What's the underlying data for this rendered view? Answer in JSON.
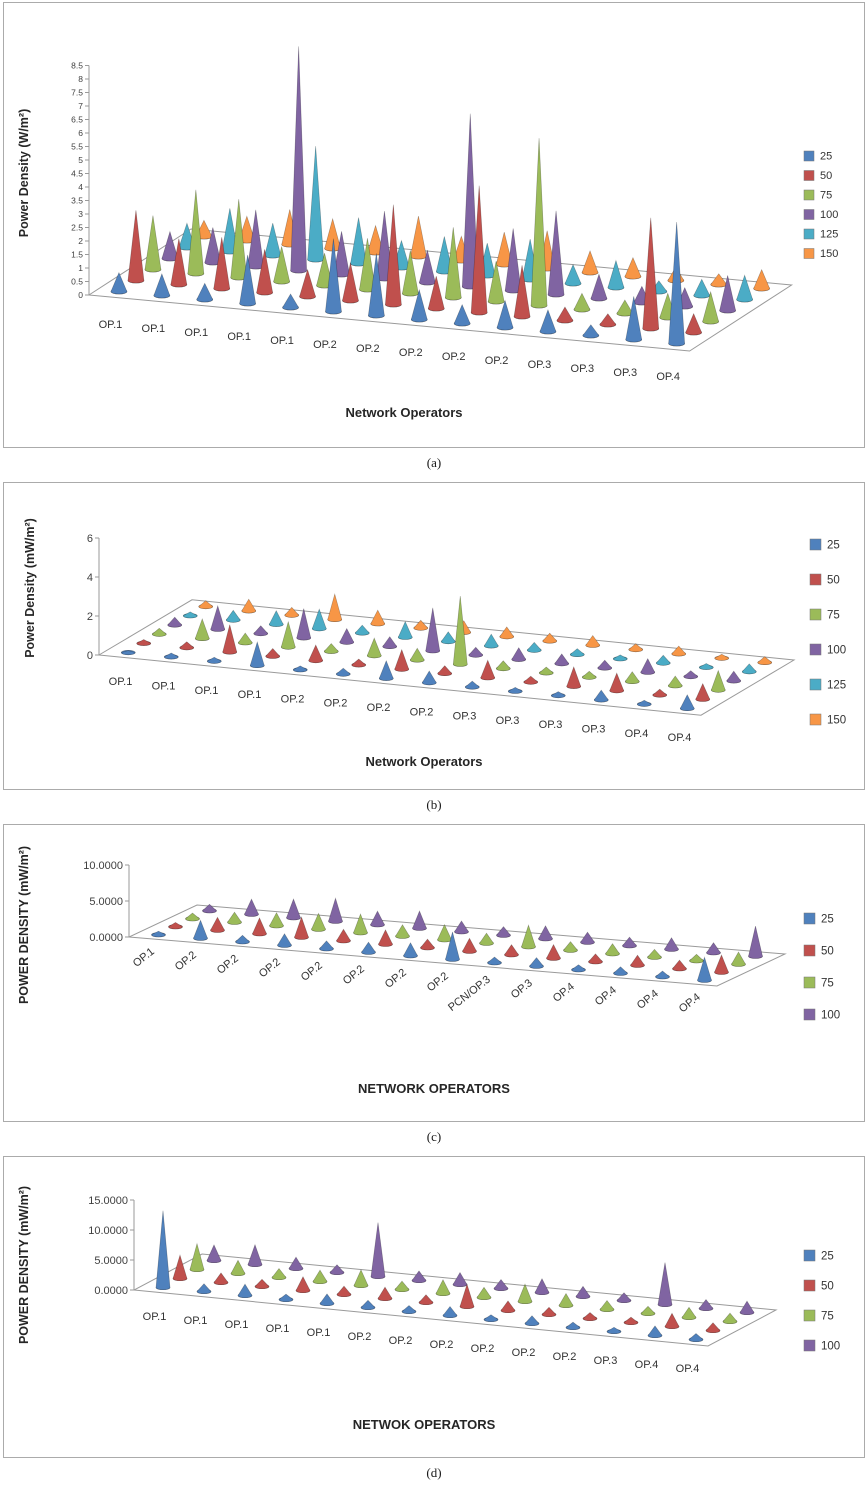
{
  "chart_data": [
    {
      "id": "a",
      "type": "bar",
      "subtype": "3d-cone-column",
      "caption": "(a)",
      "title": "",
      "xlabel": "Network Operators",
      "ylabel": "Power Density (W/m²)",
      "ylim": [
        0,
        8.5
      ],
      "grid": false,
      "legend_position": "right",
      "yticks": [
        {
          "value": 0,
          "label": "0"
        },
        {
          "value": 0.5,
          "label": "0.5"
        },
        {
          "value": 1,
          "label": "1"
        },
        {
          "value": 1.5,
          "label": "1.5"
        },
        {
          "value": 2,
          "label": "2"
        },
        {
          "value": 2.5,
          "label": "2.5"
        },
        {
          "value": 3,
          "label": "3"
        },
        {
          "value": 3.5,
          "label": "3.5"
        },
        {
          "value": 4,
          "label": "4"
        },
        {
          "value": 4.5,
          "label": "4.5"
        },
        {
          "value": 5,
          "label": "5"
        },
        {
          "value": 5.5,
          "label": "5.5"
        },
        {
          "value": 6,
          "label": "6"
        },
        {
          "value": 6.5,
          "label": "6.5"
        },
        {
          "value": 7,
          "label": "7"
        },
        {
          "value": 7.5,
          "label": "7.5"
        },
        {
          "value": 8,
          "label": "8"
        },
        {
          "value": 8.5,
          "label": "8.5"
        }
      ],
      "categories": [
        "OP.1",
        "OP.1",
        "OP.1",
        "OP.1",
        "OP.1",
        "OP.2",
        "OP.2",
        "OP.2",
        "OP.2",
        "OP.2",
        "OP.3",
        "OP.3",
        "OP.3",
        "OP.4"
      ],
      "series": [
        {
          "name": "25",
          "color": "#4F81BD",
          "values": [
            0.7,
            0.8,
            0.6,
            1.8,
            0.5,
            2.7,
            2.3,
            1.1,
            0.7,
            1.0,
            0.8,
            0.4,
            1.6,
            4.5
          ]
        },
        {
          "name": "50",
          "color": "#C0504D",
          "values": [
            2.6,
            1.7,
            1.9,
            1.6,
            1.0,
            1.4,
            3.7,
            1.2,
            4.7,
            1.9,
            0.5,
            0.4,
            4.1,
            0.7
          ]
        },
        {
          "name": "75",
          "color": "#9BBB59",
          "values": [
            2.0,
            3.1,
            2.9,
            1.3,
            1.2,
            1.9,
            1.6,
            2.6,
            1.5,
            6.2,
            0.6,
            0.5,
            0.9,
            1.1
          ]
        },
        {
          "name": "100",
          "color": "#8064A2",
          "values": [
            1.0,
            1.3,
            2.1,
            8.3,
            1.6,
            2.5,
            1.2,
            6.4,
            2.3,
            3.1,
            0.9,
            0.6,
            0.7,
            1.3
          ]
        },
        {
          "name": "125",
          "color": "#4BACC6",
          "values": [
            0.9,
            1.6,
            1.2,
            4.2,
            1.7,
            1.0,
            1.3,
            1.2,
            1.5,
            0.7,
            1.0,
            0.4,
            0.6,
            0.9
          ]
        },
        {
          "name": "150",
          "color": "#F79646",
          "values": [
            0.6,
            0.9,
            1.3,
            1.1,
            1.0,
            1.5,
            0.9,
            1.2,
            1.4,
            0.8,
            0.7,
            0.5,
            0.4,
            0.7
          ]
        }
      ]
    },
    {
      "id": "b",
      "type": "bar",
      "subtype": "3d-cone-column",
      "caption": "(b)",
      "title": "",
      "xlabel": "Network Operators",
      "ylabel": "Power Density (mW/m²)",
      "ylim": [
        0,
        6
      ],
      "grid": false,
      "legend_position": "right",
      "yticks": [
        {
          "value": 0,
          "label": "0"
        },
        {
          "value": 2,
          "label": "2"
        },
        {
          "value": 4,
          "label": "4"
        },
        {
          "value": 6,
          "label": "6"
        }
      ],
      "categories": [
        "OP.1",
        "OP.1",
        "OP.1",
        "OP.1",
        "OP.2",
        "OP.2",
        "OP.2",
        "OP.2",
        "OP.3",
        "OP.3",
        "OP.3",
        "OP.3",
        "OP.4",
        "OP.4"
      ],
      "series": [
        {
          "name": "25",
          "color": "#4F81BD",
          "values": [
            0.1,
            0.2,
            0.2,
            1.2,
            0.2,
            0.3,
            0.9,
            0.6,
            0.3,
            0.2,
            0.2,
            0.5,
            0.2,
            0.7
          ]
        },
        {
          "name": "50",
          "color": "#C0504D",
          "values": [
            0.2,
            0.3,
            1.4,
            0.4,
            0.8,
            0.3,
            1.0,
            0.4,
            0.9,
            0.3,
            1.0,
            0.9,
            0.3,
            0.8
          ]
        },
        {
          "name": "75",
          "color": "#9BBB59",
          "values": [
            0.3,
            1.0,
            0.5,
            1.3,
            0.4,
            0.9,
            0.6,
            3.5,
            0.4,
            0.3,
            0.3,
            0.5,
            0.5,
            1.0
          ]
        },
        {
          "name": "100",
          "color": "#8064A2",
          "values": [
            0.4,
            1.2,
            0.4,
            1.5,
            0.7,
            0.5,
            2.2,
            0.4,
            0.6,
            0.5,
            0.4,
            0.7,
            0.3,
            0.5
          ]
        },
        {
          "name": "125",
          "color": "#4BACC6",
          "values": [
            0.2,
            0.5,
            0.7,
            1.0,
            0.4,
            0.8,
            0.5,
            0.6,
            0.4,
            0.3,
            0.2,
            0.4,
            0.2,
            0.4
          ]
        },
        {
          "name": "150",
          "color": "#F79646",
          "values": [
            0.3,
            0.6,
            0.4,
            1.3,
            0.7,
            0.4,
            0.6,
            0.5,
            0.4,
            0.5,
            0.3,
            0.4,
            0.2,
            0.3
          ]
        }
      ]
    },
    {
      "id": "c",
      "type": "bar",
      "subtype": "3d-cone-column",
      "caption": "(c)",
      "title": "",
      "xlabel": "NETWORK OPERATORS",
      "ylabel": "POWER DENSITY  (mW/m²)",
      "ylim": [
        0,
        10
      ],
      "grid": false,
      "legend_position": "right",
      "yticks": [
        {
          "value": 0,
          "label": "0.0000"
        },
        {
          "value": 5,
          "label": "5.0000"
        },
        {
          "value": 10,
          "label": "10.0000"
        }
      ],
      "categories": [
        "OP.1",
        "OP.2",
        "OP.2",
        "OP.2",
        "OP.2",
        "OP.2",
        "OP.2",
        "OP.2",
        "PCN/OP.3",
        "OP.3",
        "OP.4",
        "OP.4",
        "OP.4",
        "OP.4"
      ],
      "series": [
        {
          "name": "25",
          "color": "#4F81BD",
          "values": [
            0.5,
            2.5,
            0.9,
            1.6,
            1.1,
            1.4,
            1.8,
            3.8,
            0.8,
            1.2,
            0.7,
            0.9,
            0.8,
            3.2
          ]
        },
        {
          "name": "50",
          "color": "#C0504D",
          "values": [
            0.6,
            1.8,
            2.2,
            2.8,
            1.6,
            2.0,
            1.2,
            1.8,
            1.4,
            1.9,
            1.1,
            1.4,
            1.2,
            2.4
          ]
        },
        {
          "name": "75",
          "color": "#9BBB59",
          "values": [
            0.8,
            1.4,
            1.8,
            2.2,
            2.6,
            1.6,
            2.1,
            1.4,
            3.0,
            1.2,
            1.4,
            1.1,
            0.9,
            1.7
          ]
        },
        {
          "name": "100",
          "color": "#8064A2",
          "values": [
            0.9,
            2.1,
            2.6,
            3.2,
            1.9,
            2.4,
            1.5,
            1.2,
            1.8,
            1.4,
            1.2,
            1.6,
            1.4,
            4.2
          ]
        }
      ]
    },
    {
      "id": "d",
      "type": "bar",
      "subtype": "3d-cone-column",
      "caption": "(d)",
      "title": "",
      "xlabel": "NETWOK OPERATORS",
      "ylabel": "POWER DENSITY  (mW/m²)",
      "ylim": [
        0,
        15
      ],
      "grid": false,
      "legend_position": "right",
      "yticks": [
        {
          "value": 0,
          "label": "0.0000"
        },
        {
          "value": 5,
          "label": "5.0000"
        },
        {
          "value": 10,
          "label": "10.0000"
        },
        {
          "value": 15,
          "label": "15.0000"
        }
      ],
      "categories": [
        "OP.1",
        "OP.1",
        "OP.1",
        "OP.1",
        "OP.1",
        "OP.2",
        "OP.2",
        "OP.2",
        "OP.2",
        "OP.2",
        "OP.2",
        "OP.3",
        "OP.4",
        "OP.4"
      ],
      "series": [
        {
          "name": "25",
          "color": "#4F81BD",
          "values": [
            12.8,
            1.3,
            1.9,
            0.9,
            1.6,
            1.2,
            1.0,
            1.5,
            0.8,
            1.3,
            0.9,
            0.7,
            1.6,
            1.0
          ]
        },
        {
          "name": "50",
          "color": "#C0504D",
          "values": [
            3.9,
            1.6,
            1.2,
            2.3,
            1.4,
            1.9,
            1.3,
            3.7,
            1.6,
            1.2,
            1.0,
            0.9,
            2.2,
            1.3
          ]
        },
        {
          "name": "75",
          "color": "#9BBB59",
          "values": [
            4.3,
            2.2,
            1.5,
            1.9,
            2.6,
            1.4,
            2.3,
            1.7,
            2.9,
            2.0,
            1.5,
            1.2,
            1.7,
            1.4
          ]
        },
        {
          "name": "100",
          "color": "#8064A2",
          "values": [
            2.6,
            3.3,
            1.9,
            1.3,
            9.0,
            1.6,
            2.0,
            1.5,
            2.3,
            1.7,
            1.3,
            7.0,
            1.5,
            1.9
          ]
        }
      ]
    }
  ],
  "palette": {
    "s25": "#4F81BD",
    "s50": "#C0504D",
    "s75": "#9BBB59",
    "s100": "#8064A2",
    "s125": "#4BACC6",
    "s150": "#F79646"
  }
}
